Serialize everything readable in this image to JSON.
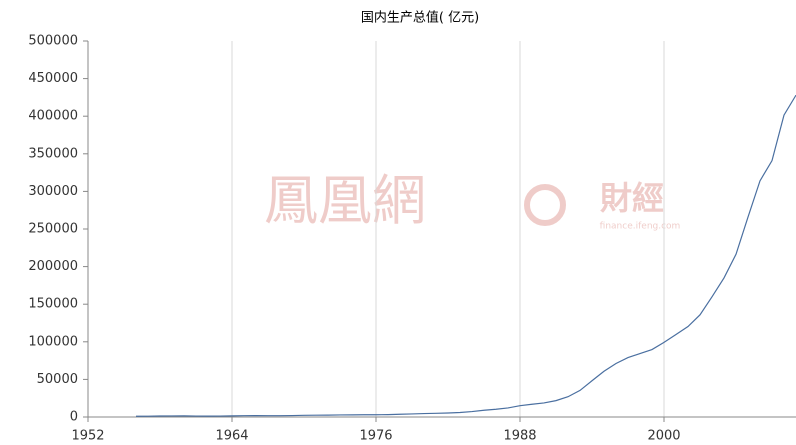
{
  "chart_data": {
    "type": "line",
    "title": "国内生产总值( 亿元)",
    "watermark": {
      "brand": "鳳凰網",
      "section": "財經",
      "site": "finance.ifeng.com"
    },
    "x": [
      1956,
      1957,
      1958,
      1959,
      1960,
      1961,
      1962,
      1963,
      1964,
      1965,
      1966,
      1967,
      1968,
      1969,
      1970,
      1971,
      1972,
      1973,
      1974,
      1975,
      1976,
      1977,
      1978,
      1979,
      1980,
      1981,
      1982,
      1983,
      1984,
      1985,
      1986,
      1987,
      1988,
      1989,
      1990,
      1991,
      1992,
      1993,
      1994,
      1995,
      1996,
      1997,
      1998,
      1999,
      2000,
      2001,
      2002,
      2003,
      2004,
      2005,
      2006,
      2007,
      2008,
      2009,
      2010,
      2011
    ],
    "series": [
      {
        "name": "国内生产总值",
        "color": "#4a6fa0",
        "values": [
          1028,
          1068,
          1307,
          1439,
          1457,
          1220,
          1149,
          1233,
          1454,
          1716,
          1868,
          1773,
          1723,
          1937,
          2252,
          2426,
          2518,
          2720,
          2789,
          2997,
          2943,
          3201,
          3645,
          4062,
          4546,
          4892,
          5323,
          5963,
          7208,
          9016,
          10275,
          12059,
          15043,
          16992,
          18668,
          21782,
          26923,
          35334,
          48198,
          60794,
          71177,
          78973,
          84402,
          89677,
          99215,
          109655,
          120333,
          135823,
          159878,
          184937,
          216314,
          265810,
          314045,
          340903,
          401513,
          428000
        ]
      }
    ],
    "xlim": [
      1952,
      2011
    ],
    "xticks": [
      1952,
      1964,
      1976,
      1988,
      2000
    ],
    "ylim": [
      0,
      500000
    ],
    "yticks": [
      0,
      50000,
      100000,
      150000,
      200000,
      250000,
      300000,
      350000,
      400000,
      450000,
      500000
    ],
    "grid": "x"
  }
}
